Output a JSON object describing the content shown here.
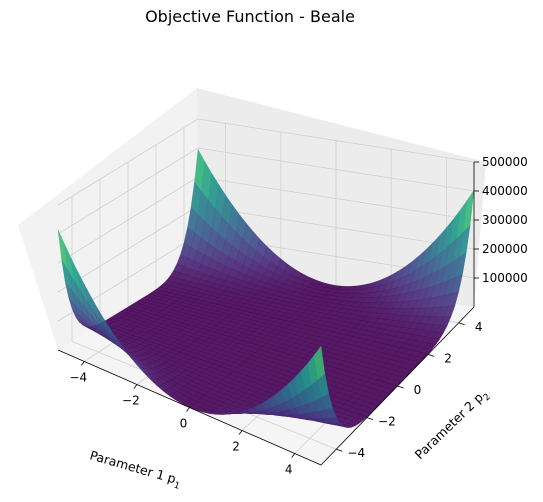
{
  "chart_data": {
    "type": "surface",
    "title": "Objective Function - Beale",
    "function": "Beale",
    "xlabel": "Parameter 1 p",
    "xlabel_sub": "1",
    "ylabel": "Parameter 2 p",
    "ylabel_sub": "2",
    "xlim": [
      -5,
      5
    ],
    "ylim": [
      -5,
      5
    ],
    "zlim": [
      0,
      500000
    ],
    "x_ticks": [
      -4,
      -2,
      0,
      2,
      4
    ],
    "x_tick_labels": [
      "−4",
      "−2",
      "0",
      "2",
      "4"
    ],
    "y_ticks": [
      -4,
      -2,
      0,
      2,
      4
    ],
    "y_tick_labels": [
      "−4",
      "−2",
      "0",
      "2",
      "4"
    ],
    "z_ticks": [
      100000,
      200000,
      300000,
      400000,
      500000
    ],
    "z_tick_labels": [
      "100000",
      "200000",
      "300000",
      "400000",
      "500000"
    ],
    "colormap": "viridis",
    "grid": true
  }
}
